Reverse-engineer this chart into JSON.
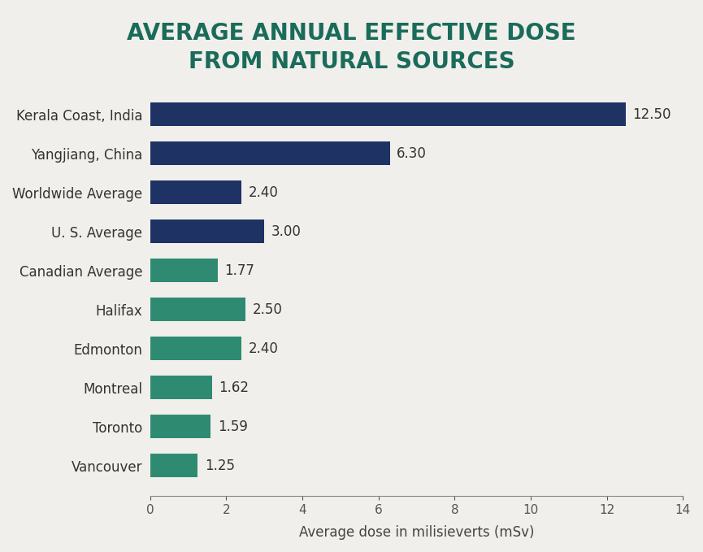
{
  "title_line1": "AVERAGE ANNUAL EFFECTIVE DOSE",
  "title_line2": "FROM NATURAL SOURCES",
  "title_color": "#1a6b5a",
  "categories": [
    "Kerala Coast, India",
    "Yangjiang, China",
    "Worldwide Average",
    "U. S. Average",
    "Canadian Average",
    "Halifax",
    "Edmonton",
    "Montreal",
    "Toronto",
    "Vancouver"
  ],
  "values": [
    12.5,
    6.3,
    2.4,
    3.0,
    1.77,
    2.5,
    2.4,
    1.62,
    1.59,
    1.25
  ],
  "bar_colors": [
    "#1e3264",
    "#1e3264",
    "#1e3264",
    "#1e3264",
    "#2e8b72",
    "#2e8b72",
    "#2e8b72",
    "#2e8b72",
    "#2e8b72",
    "#2e8b72"
  ],
  "xlabel": "Average dose in milisieverts (mSv)",
  "xlim": [
    0,
    14
  ],
  "xticks": [
    0,
    2,
    4,
    6,
    8,
    10,
    12,
    14
  ],
  "background_color": "#f0efeb",
  "label_fontsize": 12,
  "value_fontsize": 12,
  "title_fontsize": 20,
  "xlabel_fontsize": 12
}
